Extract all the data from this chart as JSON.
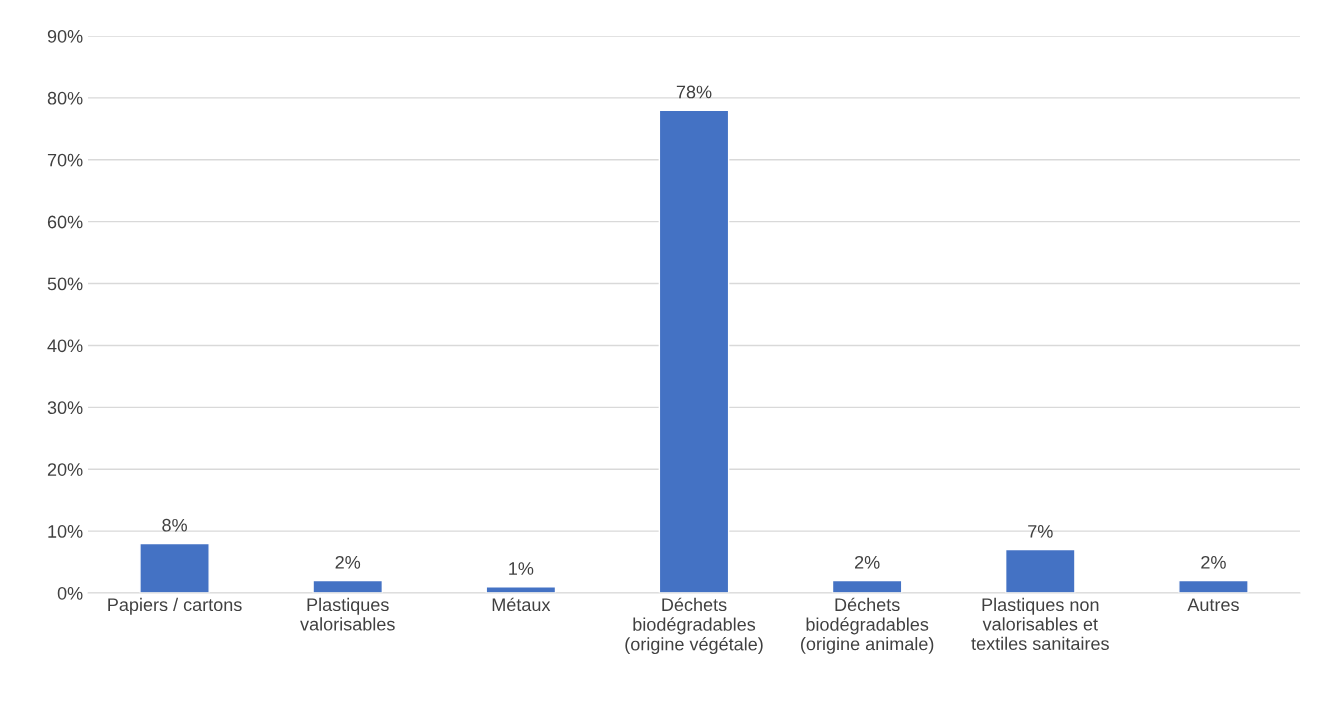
{
  "chart_data": {
    "type": "bar",
    "categories": [
      "Papiers / cartons",
      "Plastiques\nvalorisables",
      "Métaux",
      "Déchets\nbiodégradables\n(origine végétale)",
      "Déchets\nbiodégradables\n(origine animale)",
      "Plastiques non\nvalorisables et\ntextiles sanitaires",
      "Autres"
    ],
    "values": [
      8,
      2,
      1,
      78,
      2,
      7,
      2
    ],
    "value_labels": [
      "8%",
      "2%",
      "1%",
      "78%",
      "2%",
      "7%",
      "2%"
    ],
    "color": "#4472c4",
    "ylim": [
      0,
      90
    ],
    "yticks": [
      {
        "value": 0,
        "label": "0%"
      },
      {
        "value": 10,
        "label": "10%"
      },
      {
        "value": 20,
        "label": "20%"
      },
      {
        "value": 30,
        "label": "30%"
      },
      {
        "value": 40,
        "label": "40%"
      },
      {
        "value": 50,
        "label": "50%"
      },
      {
        "value": 60,
        "label": "60%"
      },
      {
        "value": 70,
        "label": "70%"
      },
      {
        "value": 80,
        "label": "80%"
      },
      {
        "value": 90,
        "label": "90%"
      }
    ],
    "grid": "y"
  }
}
